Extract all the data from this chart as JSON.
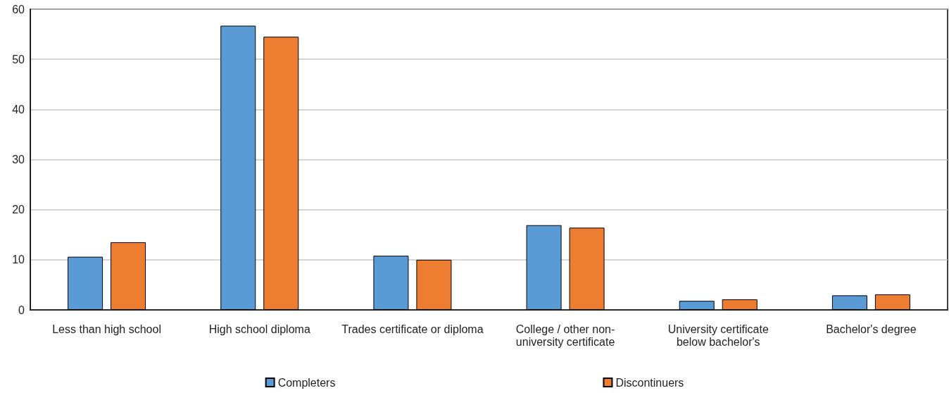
{
  "chart_data": {
    "type": "bar",
    "categories": [
      "Less than high school",
      "High school diploma",
      "Trades certificate or diploma",
      "College / other non-\nuniversity certificate",
      "University certificate\nbelow bachelor's",
      "Bachelor's degree"
    ],
    "series": [
      {
        "name": "Completers",
        "color": "#5b9bd5",
        "values": [
          10.6,
          56.7,
          10.8,
          16.9,
          1.8,
          2.9
        ]
      },
      {
        "name": "Discontinuers",
        "color": "#ed7d31",
        "values": [
          13.5,
          54.5,
          10.0,
          16.4,
          2.1,
          3.1
        ]
      }
    ],
    "ylim": [
      0,
      60
    ],
    "yticks": [
      0,
      10,
      20,
      30,
      40,
      50,
      60
    ],
    "grid": "y",
    "legend": "bottom"
  }
}
